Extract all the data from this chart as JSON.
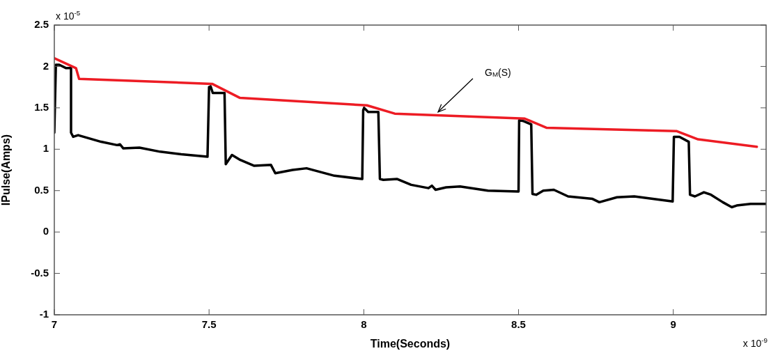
{
  "chart_data": {
    "type": "line",
    "xlabel": "Time(Seconds)",
    "ylabel": "IPulse(Amps)",
    "xlim": [
      7,
      9.3
    ],
    "xticks": [
      7,
      7.5,
      8,
      8.5,
      9
    ],
    "ylim": [
      -1,
      2.5
    ],
    "yticks": [
      -1,
      -0.5,
      0,
      0.5,
      1,
      1.5,
      2,
      2.5
    ],
    "series": [
      {
        "color": "#ed1c24",
        "x": [
          7,
          7.07,
          7.08,
          7.51,
          7.6,
          8.01,
          8.1,
          8.52,
          8.59,
          9.01,
          9.08,
          9.27
        ],
        "values": [
          2.1,
          1.98,
          1.85,
          1.79,
          1.62,
          1.53,
          1.43,
          1.37,
          1.26,
          1.22,
          1.12,
          1.03
        ]
      },
      {
        "color": "#000000",
        "x": [
          7,
          7.005,
          7.016,
          7.038,
          7.054,
          7.054,
          7.061,
          7.077,
          7.151,
          7.203,
          7.212,
          7.223,
          7.275,
          7.342,
          7.41,
          7.495,
          7.5,
          7.505,
          7.512,
          7.55,
          7.554,
          7.574,
          7.601,
          7.646,
          7.7,
          7.714,
          7.77,
          7.815,
          7.905,
          7.995,
          7.998,
          8.001,
          8.014,
          8.047,
          8.052,
          8.063,
          8.108,
          8.153,
          8.209,
          8.22,
          8.232,
          8.266,
          8.311,
          8.401,
          8.5,
          8.502,
          8.516,
          8.541,
          8.545,
          8.557,
          8.58,
          8.614,
          8.66,
          8.739,
          8.761,
          8.818,
          8.874,
          8.998,
          9.002,
          9.02,
          9.05,
          9.054,
          9.07,
          9.099,
          9.122,
          9.16,
          9.189,
          9.205,
          9.25,
          9.3
        ],
        "values": [
          1.2,
          2.02,
          2.02,
          1.98,
          1.98,
          1.2,
          1.15,
          1.17,
          1.09,
          1.05,
          1.06,
          1.01,
          1.02,
          0.97,
          0.94,
          0.91,
          1.75,
          1.76,
          1.68,
          1.68,
          0.82,
          0.93,
          0.87,
          0.8,
          0.81,
          0.71,
          0.75,
          0.77,
          0.68,
          0.64,
          1.47,
          1.5,
          1.45,
          1.45,
          0.64,
          0.63,
          0.64,
          0.57,
          0.53,
          0.56,
          0.51,
          0.54,
          0.55,
          0.5,
          0.49,
          1.35,
          1.34,
          1.3,
          0.46,
          0.45,
          0.5,
          0.51,
          0.43,
          0.4,
          0.36,
          0.42,
          0.43,
          0.37,
          1.15,
          1.15,
          1.09,
          0.45,
          0.43,
          0.48,
          0.45,
          0.36,
          0.3,
          0.32,
          0.34,
          0.34
        ]
      }
    ],
    "annotations": [
      {
        "text": "G$_{M}$(S)",
        "x": 8.24,
        "y": 1.45
      },
      "x 10$^{-5}$",
      "x 10$^{-9}$"
    ],
    "legend": false,
    "marker": "none",
    "line_style": "solid"
  }
}
